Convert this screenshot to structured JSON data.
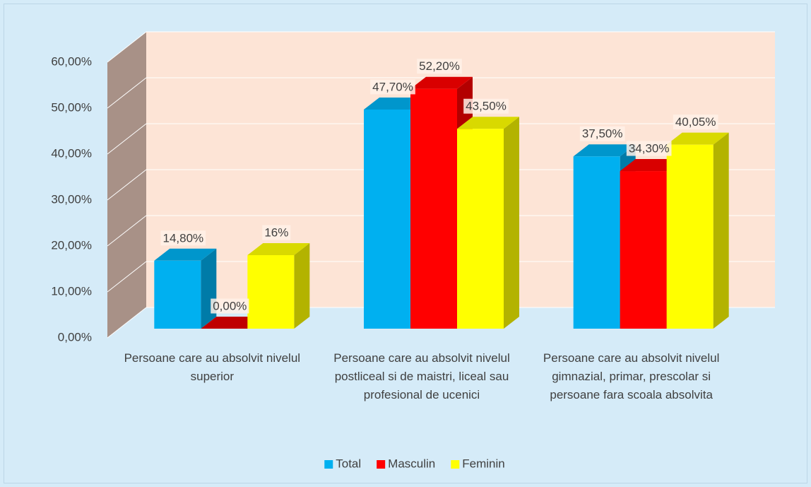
{
  "chart_data": {
    "type": "bar3d",
    "categories": [
      "Persoane care au absolvit nivelul superior",
      "Persoane care au absolvit nivelul postliceal si de maistri, liceal sau profesional de ucenici",
      "Persoane care au absolvit nivelul gimnazial, primar, prescolar si persoane fara scoala absolvita"
    ],
    "series": [
      {
        "name": "Total",
        "color": "#00b0f0",
        "values": [
          14.8,
          47.7,
          37.5
        ],
        "value_labels": [
          "14,80%",
          "47,70%",
          "37,50%"
        ]
      },
      {
        "name": "Masculin",
        "color": "#ff0000",
        "values": [
          0,
          52.2,
          34.3
        ],
        "value_labels": [
          "0,00%",
          "52,20%",
          "34,30%"
        ]
      },
      {
        "name": "Feminin",
        "color": "#ffff00",
        "values": [
          16,
          43.5,
          40.05
        ],
        "value_labels": [
          "16%",
          "43,50%",
          "40,05%"
        ]
      }
    ],
    "ylim": [
      0,
      60
    ],
    "yticks": [
      {
        "value": 0,
        "label": "0,00%"
      },
      {
        "value": 10,
        "label": "10,00%"
      },
      {
        "value": 20,
        "label": "20,00%"
      },
      {
        "value": 30,
        "label": "30,00%"
      },
      {
        "value": 40,
        "label": "40,00%"
      },
      {
        "value": 50,
        "label": "50,00%"
      },
      {
        "value": 60,
        "label": "60,00%"
      }
    ],
    "grid": true,
    "legend": "bottom"
  }
}
